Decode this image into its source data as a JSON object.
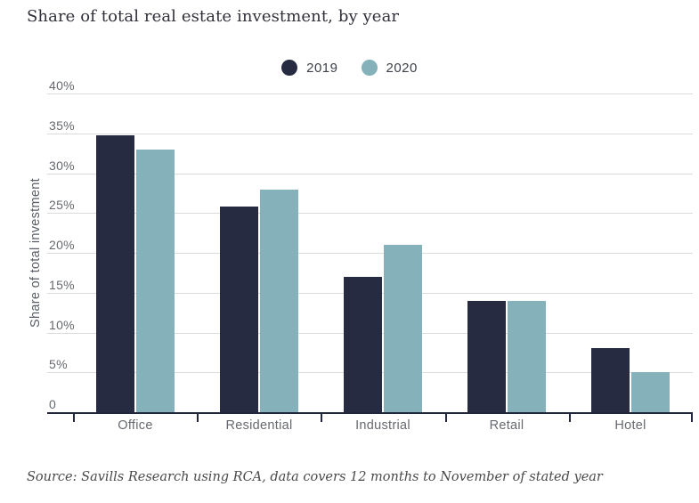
{
  "title": "Share of total real estate investment, by year",
  "source_note": "Source: Savills Research using RCA, data covers 12 months to November of stated year",
  "colors": {
    "series_2019": "#262B42",
    "series_2020": "#84B1BA",
    "axis": "#23273B",
    "gridline": "#DBDBDB",
    "label_gray": "#66696F",
    "title_text": "#30303A",
    "source_text": "#4A4A4A"
  },
  "chart_data": {
    "type": "bar",
    "title": "Share of total real estate investment, by year",
    "categories": [
      "Office",
      "Residential",
      "Industrial",
      "Retail",
      "Hotel"
    ],
    "series": [
      {
        "name": "2019",
        "color": "#262B42",
        "values": [
          34.8,
          25.8,
          17.0,
          14.0,
          8.0
        ]
      },
      {
        "name": "2020",
        "color": "#84B1BA",
        "values": [
          33.0,
          27.9,
          21.0,
          14.0,
          5.0
        ]
      }
    ],
    "xlabel": "",
    "ylabel": "Share of total investment",
    "ylim": [
      0,
      40
    ],
    "ytick_step": 5,
    "ytick_labels": [
      "40%",
      "35%",
      "30%",
      "25%",
      "20%",
      "15%",
      "10%",
      "5%",
      "0"
    ],
    "grid": true,
    "legend_position": "top-center",
    "source": "Source: Savills Research using RCA, data covers 12 months to November of stated year"
  }
}
